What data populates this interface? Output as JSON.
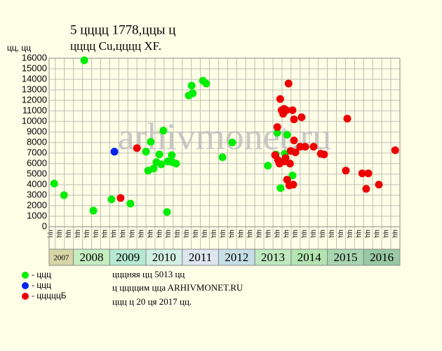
{
  "chart_data": {
    "type": "scatter",
    "title": "5 цццц 1778,ццы ц",
    "subtitle": "цццц Cu,цццц XF.",
    "y_label": "цц, цц",
    "watermark": "arhivmonet.ru",
    "notes": [
      "цццняя цц 5013 цц",
      "ц ццццим ццa ARHIVMONET.RU",
      "ццц ц 20 ця 2017 цц."
    ],
    "xlim": [
      2007.33,
      2017.0
    ],
    "ylim": [
      0,
      16000
    ],
    "yticks": [
      0,
      1000,
      2000,
      3000,
      4000,
      5000,
      6000,
      7000,
      8000,
      9000,
      10000,
      11000,
      12000,
      13000,
      14000,
      15000,
      16000
    ],
    "xticks": [
      {
        "value": 2007.5,
        "label": "цц"
      },
      {
        "value": 2007.75,
        "label": "цц"
      },
      {
        "value": 2008,
        "label": "цц"
      },
      {
        "value": 2008.25,
        "label": "цц"
      },
      {
        "value": 2008.5,
        "label": "цц"
      },
      {
        "value": 2008.75,
        "label": "цц"
      },
      {
        "value": 2009,
        "label": "цц"
      },
      {
        "value": 2009.25,
        "label": "цц"
      },
      {
        "value": 2009.5,
        "label": "цц"
      },
      {
        "value": 2009.75,
        "label": "цц"
      },
      {
        "value": 2010,
        "label": "цц"
      },
      {
        "value": 2010.25,
        "label": "цц"
      },
      {
        "value": 2010.5,
        "label": "цц"
      },
      {
        "value": 2010.75,
        "label": "цц"
      },
      {
        "value": 2011,
        "label": "цц"
      },
      {
        "value": 2011.25,
        "label": "цц"
      },
      {
        "value": 2011.5,
        "label": "цц"
      },
      {
        "value": 2011.75,
        "label": "цц"
      },
      {
        "value": 2012,
        "label": "цц"
      },
      {
        "value": 2012.25,
        "label": "цц"
      },
      {
        "value": 2012.5,
        "label": "цц"
      },
      {
        "value": 2012.75,
        "label": "цц"
      },
      {
        "value": 2013,
        "label": "цц"
      },
      {
        "value": 2013.25,
        "label": "цц"
      },
      {
        "value": 2013.5,
        "label": "цц"
      },
      {
        "value": 2013.75,
        "label": "цц"
      },
      {
        "value": 2014,
        "label": "цц"
      },
      {
        "value": 2014.25,
        "label": "цц"
      },
      {
        "value": 2014.5,
        "label": "цц"
      },
      {
        "value": 2014.75,
        "label": "цц"
      },
      {
        "value": 2015,
        "label": "цц"
      },
      {
        "value": 2015.25,
        "label": "цц"
      },
      {
        "value": 2015.5,
        "label": "цц"
      },
      {
        "value": 2015.75,
        "label": "цц"
      },
      {
        "value": 2016,
        "label": "цц"
      },
      {
        "value": 2016.25,
        "label": "цц"
      },
      {
        "value": 2016.5,
        "label": "цц"
      },
      {
        "value": 2016.75,
        "label": "цц"
      },
      {
        "value": 2017,
        "label": "цц"
      }
    ],
    "year_bands": [
      "2007",
      "2008",
      "2009",
      "2010",
      "2011",
      "2012",
      "2013",
      "2014",
      "2015",
      "2016"
    ],
    "year_band_colors": [
      "#d6d6a6",
      "#c6efc0",
      "#b6e8d2",
      "#d2efe4",
      "#dde6ee",
      "#c6dfe6",
      "#bfe9bf",
      "#b4e4b0",
      "#a8d6b0",
      "#98c8a6"
    ],
    "grid": true,
    "series": [
      {
        "name": "- ццц",
        "color": "#00ee00",
        "x": [
          2007.47,
          2007.74,
          2008.3,
          2008.55,
          2009.05,
          2009.57,
          2010.0,
          2010.06,
          2010.13,
          2010.21,
          2010.29,
          2010.37,
          2010.42,
          2010.48,
          2010.58,
          2010.6,
          2010.71,
          2010.73,
          2010.83,
          2011.18,
          2011.26,
          2011.29,
          2011.57,
          2011.66,
          2012.11,
          2012.38,
          2013.36,
          2013.58,
          2013.62,
          2013.71,
          2013.83,
          2013.89,
          2014.04
        ],
        "values": [
          4100,
          3000,
          15800,
          1530,
          2600,
          2200,
          7130,
          5330,
          8070,
          5530,
          6130,
          6870,
          5930,
          9130,
          1400,
          6200,
          6800,
          6130,
          6000,
          12470,
          13400,
          12670,
          13870,
          13600,
          6600,
          8000,
          5800,
          6870,
          8930,
          3670,
          6930,
          8730,
          4870
        ]
      },
      {
        "name": "- ццц",
        "color": "#0022ee",
        "x": [
          2009.13
        ],
        "values": [
          7130
        ]
      },
      {
        "name": "- цццццБ",
        "color": "#ee0000",
        "x": [
          2009.3,
          2009.75,
          2013.56,
          2013.62,
          2013.64,
          2013.68,
          2013.7,
          2013.74,
          2013.78,
          2013.8,
          2013.81,
          2013.85,
          2013.87,
          2013.89,
          2013.93,
          2013.95,
          2013.97,
          2013.99,
          2014.04,
          2014.06,
          2014.08,
          2014.08,
          2014.12,
          2014.25,
          2014.29,
          2014.39,
          2014.62,
          2014.82,
          2014.91,
          2015.51,
          2015.55,
          2015.96,
          2016.07,
          2016.13,
          2016.42,
          2016.87
        ],
        "values": [
          2730,
          7470,
          6800,
          9470,
          6330,
          6000,
          12130,
          11070,
          10730,
          6200,
          11200,
          6530,
          11070,
          4470,
          13600,
          3930,
          6000,
          7200,
          11070,
          4000,
          8200,
          10200,
          7070,
          7600,
          10400,
          7600,
          7600,
          6930,
          6870,
          5330,
          10270,
          5070,
          3600,
          5070,
          4000,
          7270
        ]
      }
    ]
  }
}
